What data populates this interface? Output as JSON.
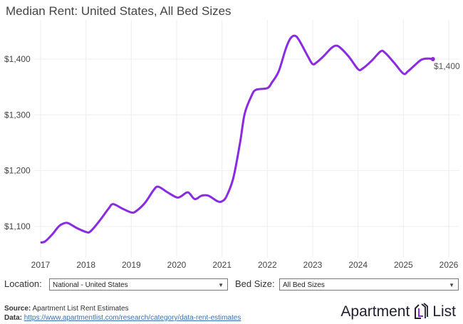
{
  "title": "Median Rent: United States, All Bed Sizes",
  "chart_data": {
    "type": "line",
    "title": "Median Rent: United States, All Bed Sizes",
    "xlabel": "",
    "ylabel": "",
    "xlim": [
      2017,
      2026
    ],
    "ylim": [
      1050,
      1460
    ],
    "grid": true,
    "x_ticks": [
      "2017",
      "2018",
      "2019",
      "2020",
      "2021",
      "2022",
      "2023",
      "2024",
      "2025",
      "2026"
    ],
    "y_ticks": [
      {
        "value": 1100,
        "label": "$1,100"
      },
      {
        "value": 1200,
        "label": "$1,200"
      },
      {
        "value": 1300,
        "label": "$1,300"
      },
      {
        "value": 1400,
        "label": "$1,400"
      }
    ],
    "series": [
      {
        "name": "Median Rent",
        "color": "#8a2be2",
        "x": [
          2017.0,
          2017.1,
          2017.25,
          2017.4,
          2017.5,
          2017.6,
          2017.8,
          2018.0,
          2018.1,
          2018.3,
          2018.5,
          2018.6,
          2018.8,
          2019.0,
          2019.1,
          2019.3,
          2019.5,
          2019.6,
          2019.8,
          2020.0,
          2020.1,
          2020.25,
          2020.4,
          2020.55,
          2020.7,
          2020.9,
          2021.0,
          2021.1,
          2021.25,
          2021.4,
          2021.5,
          2021.65,
          2021.75,
          2022.0,
          2022.1,
          2022.25,
          2022.4,
          2022.5,
          2022.6,
          2022.7,
          2022.9,
          2023.0,
          2023.1,
          2023.25,
          2023.4,
          2023.5,
          2023.6,
          2023.8,
          2024.0,
          2024.1,
          2024.3,
          2024.5,
          2024.6,
          2024.8,
          2025.0,
          2025.1,
          2025.25,
          2025.4,
          2025.55,
          2025.65
        ],
        "values": [
          1071,
          1073,
          1085,
          1100,
          1105,
          1106,
          1097,
          1090,
          1091,
          1110,
          1132,
          1140,
          1132,
          1125,
          1127,
          1142,
          1166,
          1171,
          1161,
          1152,
          1154,
          1161,
          1149,
          1155,
          1155,
          1145,
          1145,
          1154,
          1187,
          1251,
          1302,
          1334,
          1345,
          1348,
          1358,
          1378,
          1417,
          1436,
          1442,
          1434,
          1404,
          1391,
          1395,
          1406,
          1419,
          1424,
          1421,
          1404,
          1382,
          1383,
          1397,
          1414,
          1411,
          1393,
          1374,
          1378,
          1389,
          1399,
          1401,
          1400
        ]
      }
    ],
    "end_label": "$1,400"
  },
  "controls": {
    "location_label": "Location:",
    "location_value": "National - United States",
    "bed_label": "Bed Size:",
    "bed_value": "All Bed Sizes"
  },
  "footer": {
    "source_label": "Source:",
    "source_text": "Apartment List Rent Estimates",
    "data_label": "Data:",
    "data_link": "https://www.apartmentlist.com/research/category/data-rent-estimates"
  },
  "logo": {
    "left": "Apartment",
    "right": "List"
  }
}
